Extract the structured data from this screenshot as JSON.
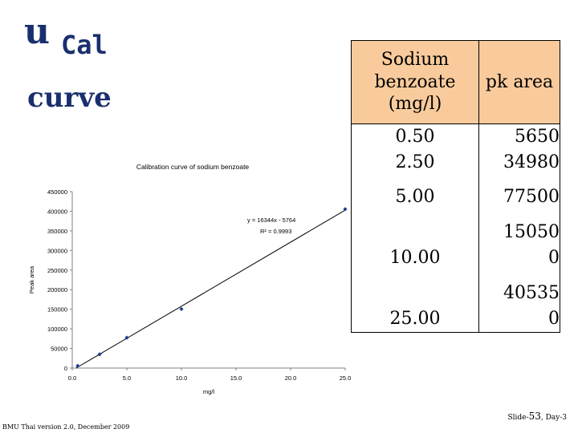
{
  "slide": {
    "title_u": "u",
    "title_sub": "Cal",
    "title_line2": "curve"
  },
  "table": {
    "headers": [
      "Sodium benzoate (mg/l)",
      "pk area"
    ],
    "rows": [
      {
        "conc": "0.50",
        "area": "5650"
      },
      {
        "conc": "2.50",
        "area": "34980"
      },
      {
        "conc": "5.00",
        "area": "77500"
      },
      {
        "conc": "10.00",
        "area": "150500"
      },
      {
        "conc": "25.00",
        "area": "405350"
      }
    ]
  },
  "footer": {
    "left": "BMU Thai version 2.0, December 2009",
    "slide_prefix": "Slide-",
    "slide_number": "53",
    "slide_suffix": ", Day-3"
  },
  "chart_data": {
    "type": "scatter",
    "title": "Calibration curve of sodium benzoate",
    "xlabel": "mg/l",
    "ylabel": "Peak area",
    "xlim": [
      0,
      25
    ],
    "ylim": [
      0,
      450000
    ],
    "x_ticks": [
      "0.0",
      "5.0",
      "10.0",
      "15.0",
      "20.0",
      "25.0"
    ],
    "y_ticks": [
      "0",
      "50000",
      "100000",
      "150000",
      "200000",
      "250000",
      "300000",
      "350000",
      "400000",
      "450000"
    ],
    "points": [
      {
        "x": 0.5,
        "y": 5650
      },
      {
        "x": 2.5,
        "y": 34980
      },
      {
        "x": 5.0,
        "y": 77500
      },
      {
        "x": 10.0,
        "y": 150500
      },
      {
        "x": 25.0,
        "y": 405350
      }
    ],
    "trendline": {
      "slope": 16344,
      "intercept": -5764
    },
    "equation": "y = 16344x - 5764",
    "r2": "R² = 0.9993",
    "grid": false,
    "legend": "none",
    "marker_color": "#1f3a93"
  }
}
